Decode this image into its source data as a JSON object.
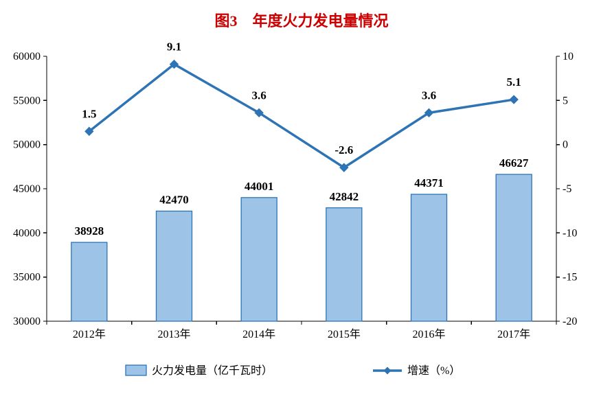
{
  "chart_data": {
    "type": "combo",
    "title": "图3　年度火力发电量情况",
    "categories": [
      "2012年",
      "2013年",
      "2014年",
      "2015年",
      "2016年",
      "2017年"
    ],
    "series": [
      {
        "name": "火力发电量（亿千瓦时）",
        "type": "bar",
        "axis": "left",
        "values": [
          38928,
          42470,
          44001,
          42842,
          44371,
          46627
        ]
      },
      {
        "name": "增速（%）",
        "type": "line",
        "axis": "right",
        "values": [
          1.5,
          9.1,
          3.6,
          -2.6,
          3.6,
          5.1
        ]
      }
    ],
    "bar_labels": [
      "38928",
      "42470",
      "44001",
      "42842",
      "44371",
      "46627"
    ],
    "line_labels": [
      "1.5",
      "9.1",
      "3.6",
      "-2.6",
      "3.6",
      "5.1"
    ],
    "left_axis": {
      "min": 30000,
      "max": 60000,
      "step": 5000,
      "ticks": [
        "30000",
        "35000",
        "40000",
        "45000",
        "50000",
        "55000",
        "60000"
      ]
    },
    "right_axis": {
      "min": -20,
      "max": 10,
      "step": 5,
      "ticks": [
        "-20",
        "-15",
        "-10",
        "-5",
        "0",
        "5",
        "10"
      ]
    },
    "legend": [
      {
        "label": "火力发电量（亿千瓦时）",
        "marker": "bar"
      },
      {
        "label": "增速（%）",
        "marker": "line"
      }
    ],
    "colors": {
      "bar_fill": "#9DC3E6",
      "bar_border": "#2E74B5",
      "line": "#2E74B5",
      "title": "#CC0000",
      "text": "#000000",
      "axis": "#000000",
      "background": "#FFFFFF"
    },
    "grid": false,
    "legend_position": "bottom"
  }
}
